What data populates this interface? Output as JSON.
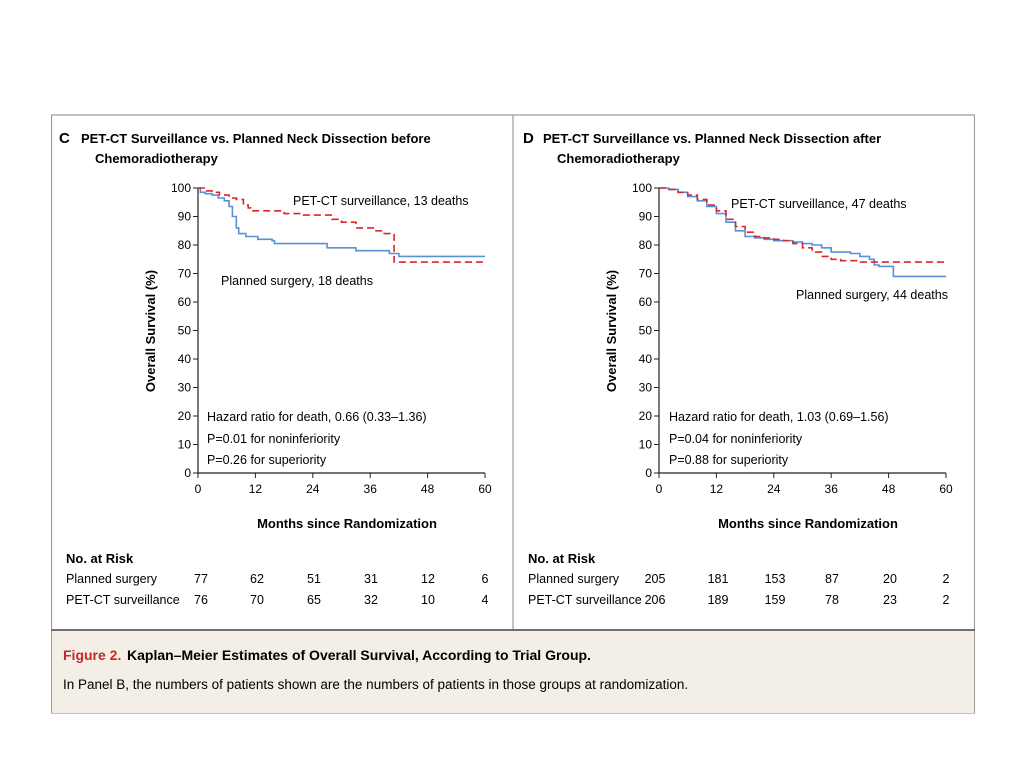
{
  "caption": {
    "label": "Figure 2.",
    "title": "Kaplan–Meier Estimates of Overall Survival, According to Trial Group.",
    "text": "In Panel B, the numbers of patients shown are the numbers of patients in those groups at randomization.",
    "background": "#f3efe6"
  },
  "colors": {
    "planned_surgery": "#5b8fd6",
    "pet_ct": "#d9262c",
    "border": "#9a9a9a"
  },
  "panels": [
    {
      "letter": "C",
      "title_line1": "PET-CT Surveillance vs. Planned Neck Dissection before",
      "title_line2": "Chemoradiotherapy",
      "ylabel": "Overall Survival (%)",
      "xlabel": "Months since Randomization",
      "annotations": [
        "Hazard ratio for death, 0.66 (0.33–1.36)",
        "P=0.01 for noninferiority",
        "P=0.26 for superiority"
      ],
      "series_labels": {
        "pet_ct": "PET-CT surveillance, 13 deaths",
        "planned": "Planned surgery, 18 deaths"
      },
      "risk": {
        "heading": "No. at Risk",
        "rows": [
          {
            "label": "Planned surgery",
            "values": [
              "77",
              "62",
              "51",
              "31",
              "12",
              "6"
            ]
          },
          {
            "label": "PET-CT surveillance",
            "values": [
              "76",
              "70",
              "65",
              "32",
              "10",
              "4"
            ]
          }
        ]
      }
    },
    {
      "letter": "D",
      "title_line1": "PET-CT Surveillance vs. Planned Neck Dissection after",
      "title_line2": "Chemoradiotherapy",
      "ylabel": "Overall Survival (%)",
      "xlabel": "Months since Randomization",
      "annotations": [
        "Hazard ratio for death, 1.03 (0.69–1.56)",
        "P=0.04 for noninferiority",
        "P=0.88 for superiority"
      ],
      "series_labels": {
        "pet_ct": "PET-CT surveillance, 47 deaths",
        "planned": "Planned surgery, 44 deaths"
      },
      "risk": {
        "heading": "No. at Risk",
        "rows": [
          {
            "label": "Planned surgery",
            "values": [
              "205",
              "181",
              "153",
              "87",
              "20",
              "2"
            ]
          },
          {
            "label": "PET-CT surveillance",
            "values": [
              "206",
              "189",
              "159",
              "78",
              "23",
              "2"
            ]
          }
        ]
      }
    }
  ],
  "chart_data": [
    {
      "type": "line",
      "subtype": "kaplan-meier step",
      "xticks": [
        0,
        12,
        24,
        36,
        48,
        60
      ],
      "yticks": [
        0,
        10,
        20,
        30,
        40,
        50,
        60,
        70,
        80,
        90,
        100
      ],
      "xlim": [
        0,
        60
      ],
      "ylim": [
        0,
        100
      ],
      "series": [
        {
          "name": "PET-CT surveillance, 13 deaths",
          "style": "dashed",
          "color": "#d9262c",
          "x": [
            0,
            1.5,
            3,
            4.5,
            6.5,
            8,
            9.5,
            10.5,
            11,
            12.5,
            18,
            21.5,
            28,
            30,
            33,
            37,
            38.5,
            41,
            60
          ],
          "y": [
            100,
            99,
            98.5,
            97.5,
            96.5,
            96,
            94,
            93,
            92,
            92,
            91,
            90.5,
            89,
            88,
            86,
            85,
            84,
            74,
            74
          ]
        },
        {
          "name": "Planned surgery, 18 deaths",
          "style": "solid",
          "color": "#5b8fd6",
          "x": [
            0,
            0.5,
            1.5,
            3,
            4.2,
            5.5,
            6.5,
            7.2,
            8,
            8.5,
            10,
            12.5,
            15.5,
            16,
            18.5,
            24,
            27,
            33,
            40,
            42,
            60
          ],
          "y": [
            100,
            98.5,
            98,
            97.5,
            96.5,
            95.5,
            93.5,
            90,
            86,
            84,
            83,
            82,
            81.5,
            80.5,
            80.5,
            80.5,
            79,
            78,
            77,
            76,
            76
          ]
        }
      ]
    },
    {
      "type": "line",
      "subtype": "kaplan-meier step",
      "xticks": [
        0,
        12,
        24,
        36,
        48,
        60
      ],
      "yticks": [
        0,
        10,
        20,
        30,
        40,
        50,
        60,
        70,
        80,
        90,
        100
      ],
      "xlim": [
        0,
        60
      ],
      "ylim": [
        0,
        100
      ],
      "series": [
        {
          "name": "PET-CT surveillance, 47 deaths",
          "style": "dashed",
          "color": "#d9262c",
          "x": [
            0,
            2,
            4,
            6,
            8,
            10,
            12,
            14,
            16,
            18,
            20,
            22,
            24,
            26,
            28,
            30,
            32,
            34,
            36,
            38,
            40,
            42,
            44,
            46,
            60
          ],
          "y": [
            100,
            99.5,
            98.5,
            97.5,
            96,
            94,
            92,
            89,
            86.5,
            84.5,
            83,
            82.5,
            82,
            81.5,
            80.5,
            79,
            77.5,
            76,
            75,
            74.5,
            74.5,
            74,
            74,
            74,
            74
          ]
        },
        {
          "name": "Planned surgery, 44 deaths",
          "style": "solid",
          "color": "#5b8fd6",
          "x": [
            0,
            2,
            4,
            6,
            8,
            10,
            12,
            14,
            16,
            18,
            20,
            22,
            24,
            26,
            28,
            30,
            32,
            34,
            36,
            38,
            40,
            42,
            44,
            45,
            46,
            47,
            49,
            60
          ],
          "y": [
            100,
            99.5,
            98.5,
            97,
            95.5,
            93.5,
            91,
            88,
            85,
            83,
            82.5,
            82,
            81.5,
            81.5,
            81,
            80.5,
            80,
            79,
            77.5,
            77.5,
            77,
            76,
            75,
            73,
            72.5,
            72.5,
            69,
            69
          ]
        }
      ]
    }
  ]
}
